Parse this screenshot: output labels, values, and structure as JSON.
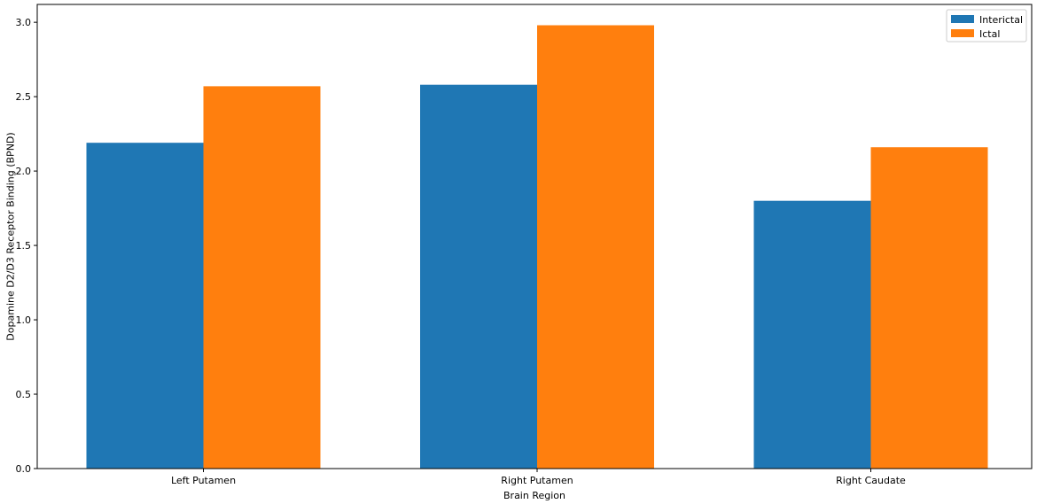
{
  "chart_data": {
    "type": "bar",
    "title": "",
    "xlabel": "Brain Region",
    "ylabel": "Dopamine D2/D3 Receptor Binding (BPND)",
    "categories": [
      "Left Putamen",
      "Right Putamen",
      "Right Caudate"
    ],
    "series": [
      {
        "name": "Interictal",
        "color": "#1f77b4",
        "values": [
          2.19,
          2.58,
          1.8
        ]
      },
      {
        "name": "Ictal",
        "color": "#ff7f0e",
        "values": [
          2.57,
          2.98,
          2.16
        ]
      }
    ],
    "ylim": [
      0,
      3.12
    ],
    "yticks": [
      "0.0",
      "0.5",
      "1.0",
      "1.5",
      "2.0",
      "2.5",
      "3.0"
    ],
    "grid": false,
    "legend_position": "top-right"
  }
}
